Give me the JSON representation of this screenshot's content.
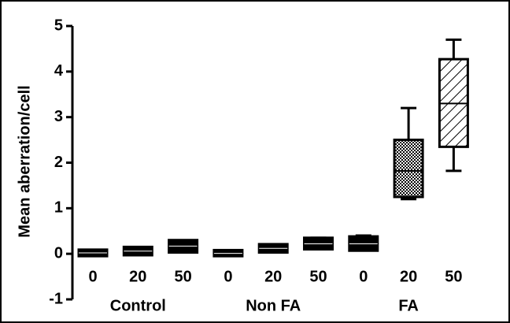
{
  "chart_data": {
    "type": "box",
    "y_label": "Mean aberration/cell",
    "categories": [
      "0",
      "20",
      "50",
      "0",
      "20",
      "50",
      "0",
      "20",
      "50"
    ],
    "groups": [
      "Control",
      "Non FA",
      "FA"
    ],
    "boxes": [
      {
        "min": 0,
        "q1": 0,
        "median": 0.02,
        "q3": 0.04,
        "max": 0.05
      },
      {
        "min": 0,
        "q1": 0.02,
        "median": 0.06,
        "q3": 0.1,
        "max": 0.12
      },
      {
        "min": 0.05,
        "q1": 0.08,
        "median": 0.17,
        "q3": 0.25,
        "max": 0.28
      },
      {
        "min": 0,
        "q1": 0,
        "median": 0.01,
        "q3": 0.03,
        "max": 0.04
      },
      {
        "min": 0.05,
        "q1": 0.08,
        "median": 0.12,
        "q3": 0.16,
        "max": 0.2
      },
      {
        "min": 0.1,
        "q1": 0.15,
        "median": 0.22,
        "q3": 0.3,
        "max": 0.35
      },
      {
        "min": 0.1,
        "q1": 0.12,
        "median": 0.22,
        "q3": 0.33,
        "max": 0.4
      },
      {
        "min": 1.2,
        "q1": 1.3,
        "median": 1.82,
        "q3": 2.45,
        "max": 3.2
      },
      {
        "min": 1.82,
        "q1": 2.4,
        "median": 3.3,
        "q3": 4.22,
        "max": 4.7
      }
    ],
    "fills": [
      "solid",
      "solid",
      "solid",
      "solid",
      "solid",
      "solid",
      "solid",
      "checker",
      "hatch"
    ],
    "color": "#000000",
    "ylim": [
      -1,
      5
    ],
    "yticks": [
      -1,
      0,
      1,
      2,
      3,
      4,
      5
    ]
  }
}
